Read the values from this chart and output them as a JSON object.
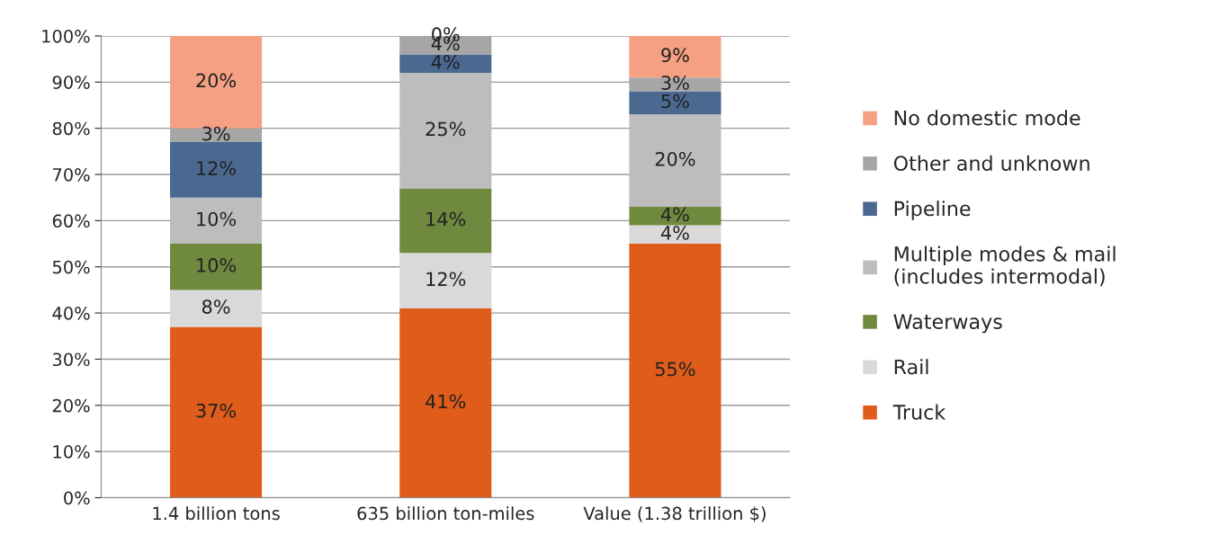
{
  "chart_data": {
    "type": "bar",
    "stacked": true,
    "grid": "y",
    "legend": "right",
    "categories": [
      "1.4 billion tons",
      "635 billion ton-miles",
      "Value (1.38 trillion $)"
    ],
    "ylim": [
      0,
      100
    ],
    "yticks": [
      {
        "value": 0,
        "label": "0%"
      },
      {
        "value": 10,
        "label": "10%"
      },
      {
        "value": 20,
        "label": "20%"
      },
      {
        "value": 30,
        "label": "30%"
      },
      {
        "value": 40,
        "label": "40%"
      },
      {
        "value": 50,
        "label": "50%"
      },
      {
        "value": 60,
        "label": "60%"
      },
      {
        "value": 70,
        "label": "70%"
      },
      {
        "value": 80,
        "label": "80%"
      },
      {
        "value": 90,
        "label": "90%"
      },
      {
        "value": 100,
        "label": "100%"
      }
    ],
    "series": [
      {
        "name": "Truck",
        "color": "#e05c1a",
        "values": [
          37,
          41,
          55
        ],
        "value_labels": [
          "37%",
          "41%",
          "55%"
        ]
      },
      {
        "name": "Rail",
        "color": "#d9d9d9",
        "values": [
          8,
          12,
          4
        ],
        "value_labels": [
          "8%",
          "12%",
          "4%"
        ]
      },
      {
        "name": "Waterways",
        "color": "#6f8a3e",
        "values": [
          10,
          14,
          4
        ],
        "value_labels": [
          "10%",
          "14%",
          "4%"
        ]
      },
      {
        "name": "Multiple modes & mail\n(includes intermodal)",
        "color": "#bdbdbd",
        "values": [
          10,
          25,
          20
        ],
        "value_labels": [
          "10%",
          "25%",
          "20%"
        ]
      },
      {
        "name": "Pipeline",
        "color": "#4a6890",
        "values": [
          12,
          4,
          5
        ],
        "value_labels": [
          "12%",
          "4%",
          "5%"
        ]
      },
      {
        "name": "Other and unknown",
        "color": "#a6a6a6",
        "values": [
          3,
          4,
          3
        ],
        "value_labels": [
          "3%",
          "4%",
          "3%"
        ]
      },
      {
        "name": "No domestic mode",
        "color": "#f5a083",
        "values": [
          20,
          0,
          9
        ],
        "value_labels": [
          "20%",
          "0%",
          "9%"
        ]
      }
    ]
  }
}
